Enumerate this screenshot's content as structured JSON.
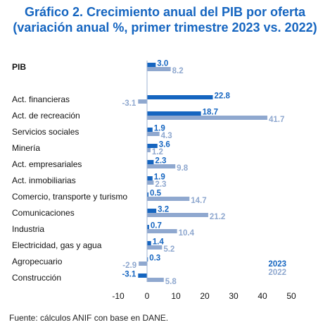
{
  "title_line1": "Gráfico 2. Crecimiento anual del PIB por oferta",
  "title_line2": "(variación anual %, primer trimestre 2023 vs. 2022)",
  "source": "Fuente: cálculos ANIF con base en DANE.",
  "colors": {
    "s2023": "#1565c0",
    "s2022": "#8fa8cf",
    "title": "#1565c0"
  },
  "chart_data": {
    "type": "bar",
    "orientation": "horizontal",
    "categories": [
      "PIB",
      "Act. financieras",
      "Act. de recreación",
      "Servicios sociales",
      "Minería",
      "Act. empresariales",
      "Act. inmobiliarias",
      "Comercio, transporte y turismo",
      "Comunicaciones",
      "Industria",
      "Electricidad, gas y agua",
      "Agropecuario",
      "Construcción"
    ],
    "series": [
      {
        "name": "2023",
        "values": [
          3.0,
          22.8,
          18.7,
          1.9,
          3.6,
          2.3,
          1.9,
          0.5,
          3.2,
          0.7,
          1.4,
          0.3,
          -3.1
        ]
      },
      {
        "name": "2022",
        "values": [
          8.2,
          -3.1,
          41.7,
          4.3,
          1.2,
          9.8,
          2.3,
          14.7,
          21.2,
          10.4,
          5.2,
          -2.9,
          5.8
        ]
      }
    ],
    "label_text": [
      [
        "3.0",
        "22.8",
        "18.7",
        "1.9",
        "3.6",
        "2.3",
        "1.9",
        "0.5",
        "3.2",
        "0.7",
        "1.4",
        "0.3",
        "-3.1"
      ],
      [
        "8.2",
        "-3.1",
        "41.7",
        "4.3",
        "1.2",
        "9.8",
        "2.3",
        "14.7",
        "21.2",
        "10.4",
        "5.2",
        "-2.9",
        "5.8"
      ]
    ],
    "xlim": [
      -10,
      50
    ],
    "xticks": [
      -10,
      0,
      10,
      20,
      30,
      40,
      50
    ],
    "legend_position": "bottom-right",
    "grid": false
  }
}
